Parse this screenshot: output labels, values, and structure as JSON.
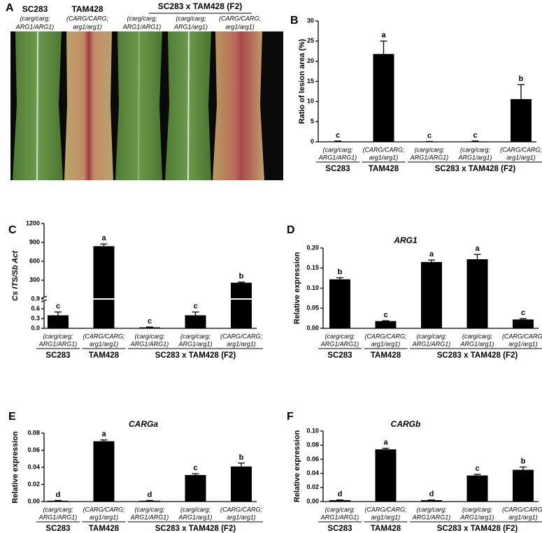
{
  "photo_panel": {
    "label": "A",
    "columns": [
      {
        "name": "SC283",
        "genotype": [
          "(carg/carg;",
          "ARG1/ARG1)"
        ]
      },
      {
        "name": "TAM428",
        "genotype": [
          "(CARG/CARG;",
          "arg1/arg1)"
        ]
      },
      {
        "genotype": [
          "(carg/carg;",
          "ARG1/ARG1)"
        ]
      },
      {
        "genotype": [
          "(carg/carg;",
          "ARG1/arg1)"
        ]
      },
      {
        "genotype": [
          "(CARG/CARG;",
          "arg1/arg1)"
        ]
      }
    ],
    "group": "SC283 x TAM428 (F2)"
  },
  "chart_data": [
    {
      "type": "bar",
      "panel": "B",
      "ylabel": "Ratio of lesion area (%)",
      "categories": [
        [
          "(carg/carg;",
          "ARG1/ARG1)"
        ],
        [
          "(CARG/CARG;",
          "arg1/arg1)"
        ],
        [
          "(carg/carg;",
          "ARG1/ARG1)"
        ],
        [
          "(carg/carg;",
          "ARG1/arg1)"
        ],
        [
          "(CARG/CARG;",
          "arg1/arg1)"
        ]
      ],
      "groups": [
        "SC283",
        "TAM428",
        "SC283 x TAM428 (F2)"
      ],
      "group_sizes": [
        1,
        1,
        3
      ],
      "values": [
        0.1,
        21.8,
        0.05,
        0.1,
        10.6
      ],
      "errors": [
        0.1,
        3.2,
        0.05,
        0.1,
        3.6
      ],
      "annotations": [
        "c",
        "a",
        "c",
        "c",
        "b"
      ],
      "color": "#000000",
      "ylim": [
        0,
        30
      ],
      "yticks": [
        0,
        5,
        10,
        15,
        20,
        25,
        30
      ]
    },
    {
      "type": "bar",
      "panel": "C",
      "ylabel": "Cs ITS/Sb Act",
      "categories": [
        [
          "(carg/carg;",
          "ARG1/ARG1)"
        ],
        [
          "(CARG/CARG;",
          "arg1/arg1)"
        ],
        [
          "(carg/carg;",
          "ARG1/ARG1)"
        ],
        [
          "(carg/carg;",
          "ARG1/arg1)"
        ],
        [
          "(CARG/CARG;",
          "arg1/arg1)"
        ]
      ],
      "groups": [
        "SC283",
        "TAM428",
        "SC283 x TAM428 (F2)"
      ],
      "group_sizes": [
        1,
        1,
        3
      ],
      "values": [
        0.4,
        840,
        0.03,
        0.4,
        260
      ],
      "errors": [
        0.1,
        35,
        0.01,
        0.1,
        10
      ],
      "annotations": [
        "c",
        "a",
        "c",
        "c",
        "b"
      ],
      "color": "#000000",
      "ylim": [
        0,
        1200
      ],
      "axis_break": 0.9,
      "yticks": [
        {
          "value": 0,
          "label": "0.0"
        },
        0.3,
        0.6,
        0.9,
        300,
        600,
        900,
        1200
      ]
    },
    {
      "type": "bar",
      "panel": "D",
      "title": "ARG1",
      "ylabel": "Relative expression",
      "categories": [
        [
          "(carg/carg;",
          "ARG1/ARG1)"
        ],
        [
          "(CARG/CARG;",
          "arg1/arg1)"
        ],
        [
          "(carg/carg;",
          "ARG1/ARG1)"
        ],
        [
          "(carg/carg;",
          "ARG1/arg1)"
        ],
        [
          "(CARG/CARG;",
          "arg1/arg1)"
        ]
      ],
      "groups": [
        "SC283",
        "TAM428",
        "SC283 x TAM428 (F2)"
      ],
      "group_sizes": [
        1,
        1,
        3
      ],
      "values": [
        0.122,
        0.018,
        0.165,
        0.172,
        0.022
      ],
      "errors": [
        0.004,
        0.001,
        0.005,
        0.012,
        0.002
      ],
      "annotations": [
        "b",
        "c",
        "a",
        "a",
        "c"
      ],
      "color": "#000000",
      "ylim": [
        0,
        0.2
      ],
      "yticks": [
        {
          "value": 0,
          "label": "0.00"
        },
        0.05,
        {
          "value": 0.1,
          "label": "0.10"
        },
        0.15,
        {
          "value": 0.2,
          "label": "0.20"
        }
      ]
    },
    {
      "type": "bar",
      "panel": "E",
      "title": "CARGa",
      "ylabel": "Relative expression",
      "categories": [
        [
          "(carg/carg;",
          "ARG1/ARG1)"
        ],
        [
          "(CARG/CARG;",
          "arg1/arg1)"
        ],
        [
          "(carg/carg;",
          "ARG1/ARG1)"
        ],
        [
          "(carg/carg;",
          "ARG1/arg1)"
        ],
        [
          "(CARG/CARG;",
          "arg1/arg1)"
        ]
      ],
      "groups": [
        "SC283",
        "TAM428",
        "SC283 x TAM428 (F2)"
      ],
      "group_sizes": [
        1,
        1,
        3
      ],
      "values": [
        0.001,
        0.0705,
        0.001,
        0.031,
        0.041
      ],
      "errors": [
        0.0003,
        0.0015,
        0.0003,
        0.0015,
        0.004
      ],
      "annotations": [
        "d",
        "a",
        "d",
        "c",
        "b"
      ],
      "color": "#000000",
      "ylim": [
        0,
        0.08
      ],
      "yticks": [
        {
          "value": 0,
          "label": "0.00"
        },
        0.02,
        0.04,
        0.06,
        0.08
      ]
    },
    {
      "type": "bar",
      "panel": "F",
      "title": "CARGb",
      "ylabel": "Relative expression",
      "categories": [
        [
          "(carg/carg;",
          "ARG1/ARG1)"
        ],
        [
          "(CARG/CARG;",
          "arg1/arg1)"
        ],
        [
          "(carg/carg;",
          "ARG1/ARG1)"
        ],
        [
          "(carg/carg;",
          "ARG1/arg1)"
        ],
        [
          "(CARG/CARG;",
          "arg1/arg1)"
        ]
      ],
      "groups": [
        "SC283",
        "TAM428",
        "SC283 x TAM428 (F2)"
      ],
      "group_sizes": [
        1,
        1,
        3
      ],
      "values": [
        0.002,
        0.074,
        0.002,
        0.037,
        0.045
      ],
      "errors": [
        0.0003,
        0.0015,
        0.0003,
        0.0015,
        0.004
      ],
      "annotations": [
        "d",
        "a",
        "d",
        "c",
        "b"
      ],
      "color": "#000000",
      "ylim": [
        0,
        0.1
      ],
      "yticks": [
        {
          "value": 0,
          "label": "0.00"
        },
        0.02,
        0.04,
        0.06,
        0.08,
        {
          "value": 0.1,
          "label": "0.10"
        }
      ]
    }
  ]
}
